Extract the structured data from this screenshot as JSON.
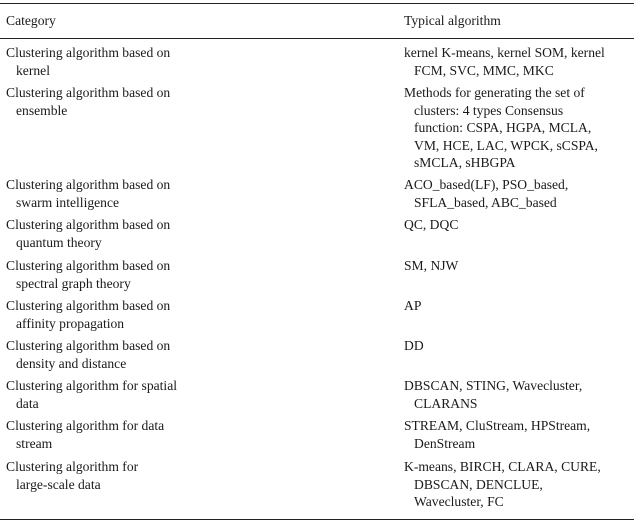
{
  "table": {
    "header": {
      "category": "Category",
      "algorithm": "Typical algorithm"
    },
    "rows": [
      {
        "category": [
          "Clustering algorithm based on",
          "kernel"
        ],
        "algorithm": [
          "kernel K-means, kernel SOM, kernel",
          "FCM, SVC, MMC, MKC"
        ]
      },
      {
        "category": [
          "Clustering algorithm based on",
          "ensemble"
        ],
        "algorithm": [
          "Methods for generating the set of",
          "clusters: 4 types Consensus",
          "function: CSPA, HGPA, MCLA,",
          "VM, HCE, LAC, WPCK, sCSPA,",
          "sMCLA, sHBGPA"
        ]
      },
      {
        "category": [
          "Clustering algorithm based on",
          "swarm intelligence"
        ],
        "algorithm": [
          "ACO_based(LF), PSO_based,",
          "SFLA_based, ABC_based"
        ]
      },
      {
        "category": [
          "Clustering algorithm based on",
          "quantum theory"
        ],
        "algorithm": [
          "QC, DQC"
        ]
      },
      {
        "category": [
          "Clustering algorithm based on",
          "spectral graph theory"
        ],
        "algorithm": [
          "SM, NJW"
        ]
      },
      {
        "category": [
          "Clustering algorithm based on",
          "affinity propagation"
        ],
        "algorithm": [
          "AP"
        ]
      },
      {
        "category": [
          "Clustering algorithm based on",
          "density and distance"
        ],
        "algorithm": [
          "DD"
        ]
      },
      {
        "category": [
          "Clustering algorithm for spatial",
          "data"
        ],
        "algorithm": [
          "DBSCAN, STING, Wavecluster,",
          "CLARANS"
        ]
      },
      {
        "category": [
          "Clustering algorithm for data",
          "stream"
        ],
        "algorithm": [
          "STREAM, CluStream, HPStream,",
          "DenStream"
        ]
      },
      {
        "category": [
          "Clustering algorithm for",
          "large-scale data"
        ],
        "algorithm": [
          "K-means, BIRCH, CLARA, CURE,",
          "DBSCAN, DENCLUE,",
          "Wavecluster, FC"
        ]
      }
    ]
  }
}
